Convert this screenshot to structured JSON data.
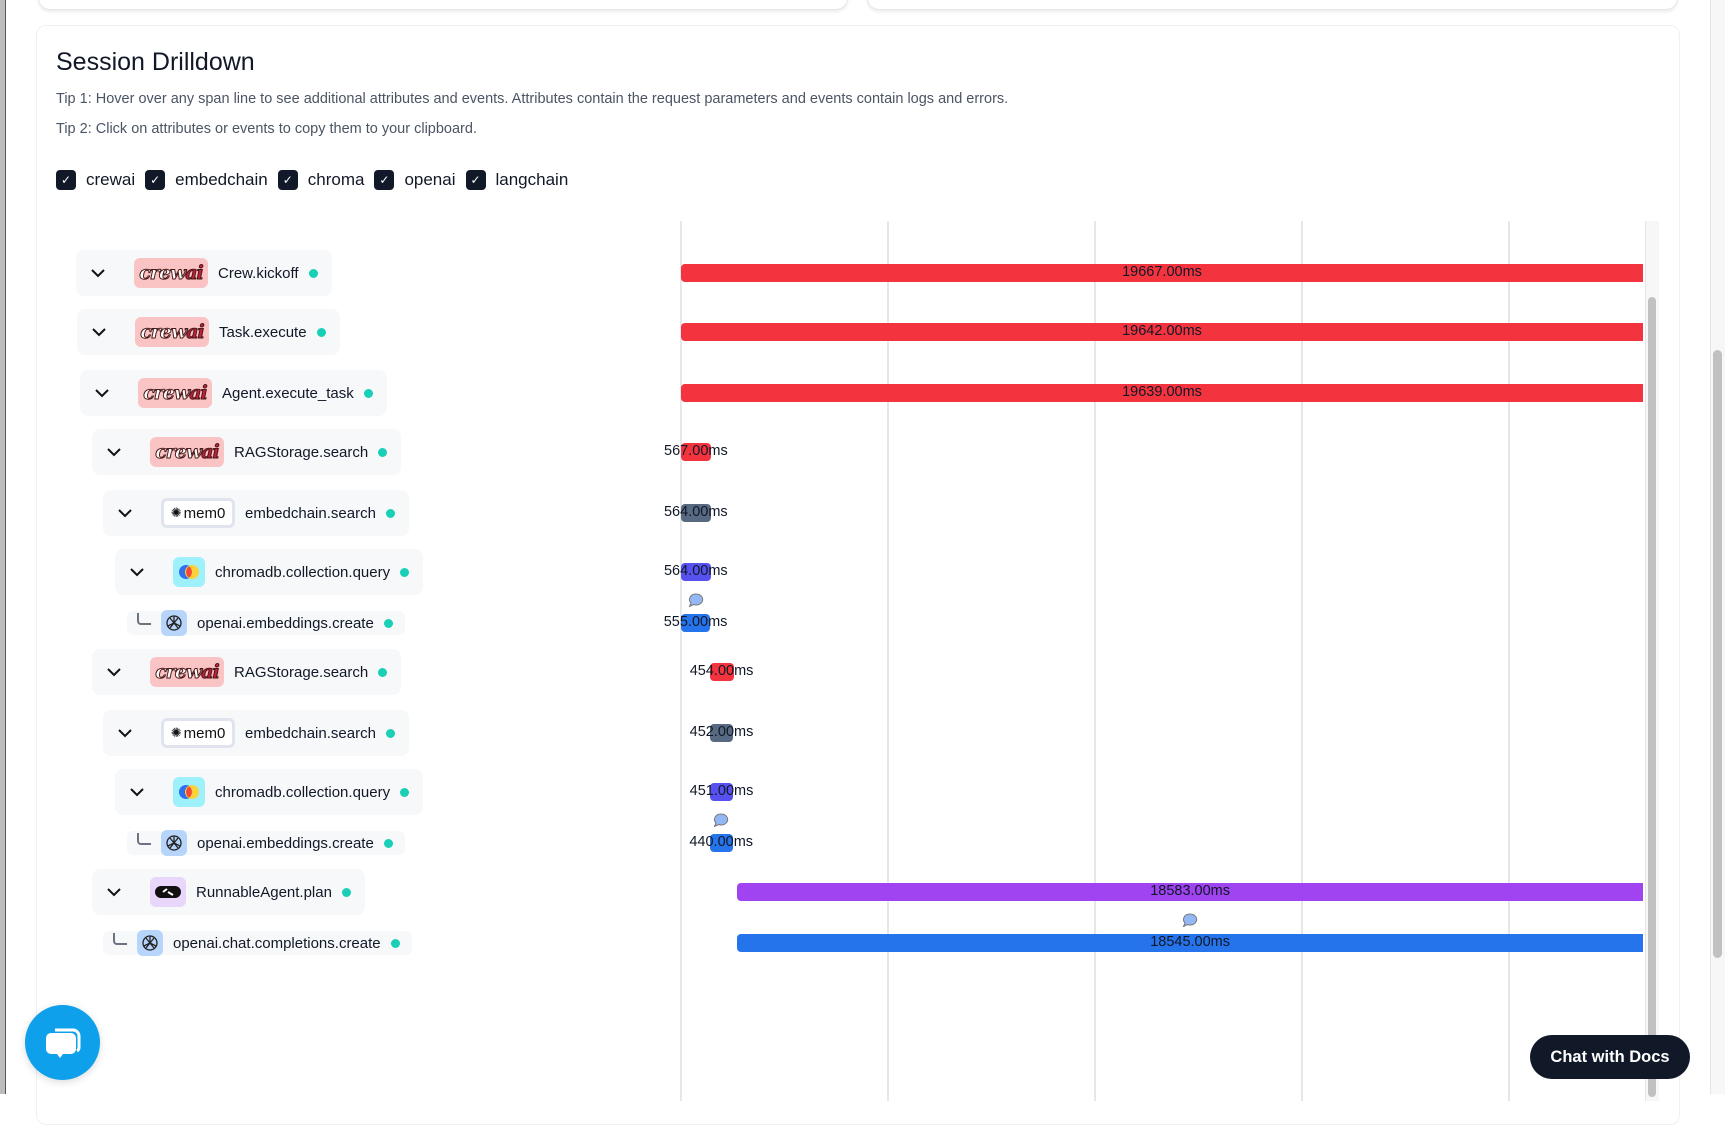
{
  "header": {
    "title": "Session Drilldown",
    "tip1": "Tip 1: Hover over any span line to see additional attributes and events. Attributes contain the request parameters and events contain logs and errors.",
    "tip2": "Tip 2: Click on attributes or events to copy them to your clipboard."
  },
  "filters": [
    {
      "label": "crewai",
      "checked": true
    },
    {
      "label": "embedchain",
      "checked": true
    },
    {
      "label": "chroma",
      "checked": true
    },
    {
      "label": "openai",
      "checked": true
    },
    {
      "label": "langchain",
      "checked": true
    }
  ],
  "timeline": {
    "visible_range_ms": [
      0,
      18300
    ],
    "spans": [
      {
        "name": "Crew.kickoff",
        "provider": "crewai",
        "expandable": true,
        "start_ms": 0,
        "duration_label": "19667.00ms",
        "duration_ms": 19667,
        "color": "#f3343f",
        "event": false
      },
      {
        "name": "Task.execute",
        "provider": "crewai",
        "expandable": true,
        "start_ms": 0,
        "duration_label": "19642.00ms",
        "duration_ms": 19642,
        "color": "#f3343f",
        "event": false
      },
      {
        "name": "Agent.execute_task",
        "provider": "crewai",
        "expandable": true,
        "start_ms": 0,
        "duration_label": "19639.00ms",
        "duration_ms": 19639,
        "color": "#f3343f",
        "event": false
      },
      {
        "name": "RAGStorage.search",
        "provider": "crewai",
        "expandable": true,
        "start_ms": 0,
        "duration_label": "567.00ms",
        "duration_ms": 567,
        "color": "#f3343f",
        "event": false
      },
      {
        "name": "embedchain.search",
        "provider": "mem0",
        "expandable": true,
        "start_ms": 0,
        "duration_label": "564.00ms",
        "duration_ms": 564,
        "color": "#586a82",
        "event": false
      },
      {
        "name": "chromadb.collection.query",
        "provider": "chroma",
        "expandable": true,
        "start_ms": 0,
        "duration_label": "564.00ms",
        "duration_ms": 564,
        "color": "#5752ef",
        "event": false
      },
      {
        "name": "openai.embeddings.create",
        "provider": "openai",
        "expandable": false,
        "start_ms": 0,
        "duration_label": "555.00ms",
        "duration_ms": 555,
        "color": "#2674ec",
        "event": true
      },
      {
        "name": "RAGStorage.search",
        "provider": "crewai",
        "expandable": true,
        "start_ms": 545,
        "duration_label": "454.00ms",
        "duration_ms": 454,
        "color": "#f3343f",
        "event": false
      },
      {
        "name": "embedchain.search",
        "provider": "mem0",
        "expandable": true,
        "start_ms": 545,
        "duration_label": "452.00ms",
        "duration_ms": 452,
        "color": "#586a82",
        "event": false
      },
      {
        "name": "chromadb.collection.query",
        "provider": "chroma",
        "expandable": true,
        "start_ms": 545,
        "duration_label": "451.00ms",
        "duration_ms": 451,
        "color": "#5752ef",
        "event": false
      },
      {
        "name": "openai.embeddings.create",
        "provider": "openai",
        "expandable": false,
        "start_ms": 545,
        "duration_label": "440.00ms",
        "duration_ms": 440,
        "color": "#2674ec",
        "event": true
      },
      {
        "name": "RunnableAgent.plan",
        "provider": "langchain",
        "expandable": true,
        "start_ms": 1070,
        "duration_label": "18583.00ms",
        "duration_ms": 18583,
        "color": "#a044f1",
        "event": false
      },
      {
        "name": "openai.chat.completions.create",
        "provider": "openai",
        "expandable": false,
        "start_ms": 1070,
        "duration_label": "18545.00ms",
        "duration_ms": 18545,
        "color": "#2674ec",
        "event": true
      }
    ]
  },
  "badges": {
    "crewai_a": "crew",
    "crewai_b": "ai",
    "mem0": "mem0"
  },
  "chat_docs_label": "Chat with Docs",
  "colors": {
    "status_dot": "#19cfb5",
    "chat_bubble": "#0ea0ea"
  }
}
